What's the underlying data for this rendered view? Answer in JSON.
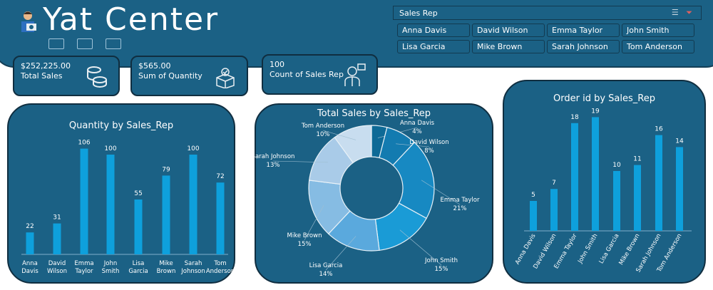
{
  "header": {
    "title": "Yat Center",
    "nav_icons": [
      "home-icon",
      "box-icon",
      "map-icon"
    ]
  },
  "kpis": [
    {
      "value": "$252,225.00",
      "label": "Total Sales",
      "icon": "coins-icon"
    },
    {
      "value": "$565.00",
      "label": "Sum of Quantity",
      "icon": "box-check-icon"
    },
    {
      "value": "100",
      "label": "Count of Sales Rep",
      "icon": "sales-rep-icon"
    }
  ],
  "slicer": {
    "title": "Sales Rep",
    "items": [
      "Anna Davis",
      "David Wilson",
      "Emma Taylor",
      "John Smith",
      "Lisa Garcia",
      "Mike Brown",
      "Sarah Johnson",
      "Tom Anderson"
    ]
  },
  "chart_data": [
    {
      "type": "bar",
      "title": "Quantity by Sales_Rep",
      "categories": [
        "Anna Davis",
        "David Wilson",
        "Emma Taylor",
        "John Smith",
        "Lisa Garcia",
        "Mike Brown",
        "Sarah Johnson",
        "Tom Anderson"
      ],
      "values": [
        22,
        31,
        106,
        100,
        55,
        79,
        100,
        72
      ],
      "color": "#0ea0dc"
    },
    {
      "type": "pie",
      "title": "Total Sales by Sales_Rep",
      "donut": true,
      "categories": [
        "Anna Davis",
        "David Wilson",
        "Emma Taylor",
        "John Smith",
        "Lisa Garcia",
        "Mike Brown",
        "Sarah Johnson",
        "Tom Anderson"
      ],
      "values": [
        4,
        8,
        21,
        15,
        14,
        15,
        13,
        10
      ],
      "labels": [
        "4%",
        "8%",
        "21%",
        "15%",
        "14%",
        "15%",
        "13%",
        "10%"
      ],
      "colors": [
        "#0e6a96",
        "#137bb0",
        "#1789c2",
        "#1a9bd6",
        "#5aa9dd",
        "#86bce3",
        "#a9cbe8",
        "#c8ddef"
      ]
    },
    {
      "type": "bar",
      "title": "Order id by Sales_Rep",
      "categories": [
        "Anna Davis",
        "David Wilson",
        "Emma Taylor",
        "John Smith",
        "Lisa Garcia",
        "Mike Brown",
        "Sarah Johnson",
        "Tom Anderson"
      ],
      "values": [
        5,
        7,
        18,
        19,
        10,
        11,
        16,
        14
      ],
      "color": "#0ea0dc"
    }
  ]
}
